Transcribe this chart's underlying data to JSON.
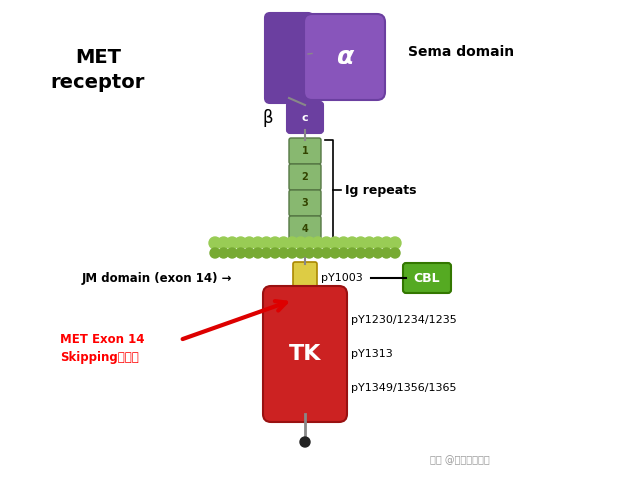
{
  "title_text": "MET\nreceptor",
  "sema_text": "Sema domain",
  "ig_text": "Ig repeats",
  "jm_label": "JM domain (exon 14) →",
  "py1003_text": "pY1003",
  "cbl_text": "CBL",
  "tk_text": "TK",
  "py_right1": "pY1230/1234/1235",
  "py_right2": "pY1313",
  "py_right3": "pY1349/1356/1365",
  "met_exon_text": "MET Exon 14\nSkipping的区域",
  "watermark": "知乎 @阳光下的灿烁",
  "alpha_label": "α",
  "beta_label": "β",
  "c_label": "c",
  "ig_labels": [
    "1",
    "2",
    "3",
    "4"
  ],
  "purple_dark": "#6b3fa0",
  "purple_med": "#8855bb",
  "green_ig": "#88b870",
  "green_ig_border": "#557744",
  "green_mem": "#99cc55",
  "yellow_jm": "#ddcc44",
  "yellow_jm_border": "#aa8800",
  "red_tk": "#cc2222",
  "red_tk_border": "#991111",
  "green_cbl": "#55aa22",
  "green_cbl_border": "#337700",
  "teal": "#009999",
  "red_arrow": "#dd0000",
  "gray_line": "#888888",
  "dark_dot": "#222222"
}
